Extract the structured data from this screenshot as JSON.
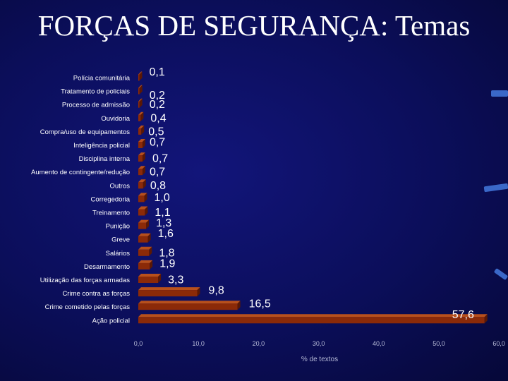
{
  "slide": {
    "title": "FORÇAS DE SEGURANÇA: Temas"
  },
  "colors": {
    "background": "#0b0e5a",
    "bar": "#8b2a08",
    "bar_side": "#5a1804",
    "bar_top": "#b8501c",
    "text": "#ffffff",
    "axis_text": "#b8bcd8"
  },
  "chart_data": {
    "type": "bar",
    "orientation": "horizontal",
    "categories": [
      "Polícia comunitária",
      "Tratamento de policiais",
      "Processo de admissão",
      "Ouvidoria",
      "Compra/uso de equipamentos",
      "Inteligência policial",
      "Disciplina interna",
      "Aumento de contingente/redução",
      "Outros",
      "Corregedoria",
      "Treinamento",
      "Punição",
      "Greve",
      "Salários",
      "Desarmamento",
      "Utilização das forças armadas",
      "Crime contra as forças",
      "Crime cometido pelas forças",
      "Ação policial"
    ],
    "values": [
      0.1,
      0.2,
      0.2,
      0.4,
      0.5,
      0.7,
      0.7,
      0.7,
      0.8,
      1.0,
      1.1,
      1.3,
      1.6,
      1.8,
      1.9,
      3.3,
      9.8,
      16.5,
      57.6
    ],
    "value_labels": [
      "0,1",
      "0,2",
      "0,2",
      "0,4",
      "0,5",
      "0,7",
      "0,7",
      "0,7",
      "0,8",
      "1,0",
      "1,1",
      "1,3",
      "1,6",
      "1,8",
      "1,9",
      "3,3",
      "9,8",
      "16,5",
      "57,6"
    ],
    "xlim": [
      0,
      60
    ],
    "xticks": [
      0,
      10,
      20,
      30,
      40,
      50,
      60
    ],
    "xtick_labels": [
      "0,0",
      "10,0",
      "20,0",
      "30,0",
      "40,0",
      "50,0",
      "60,0"
    ],
    "xlabel": "% de textos",
    "ylabel": "",
    "title": "",
    "grid": false,
    "legend": "none"
  }
}
